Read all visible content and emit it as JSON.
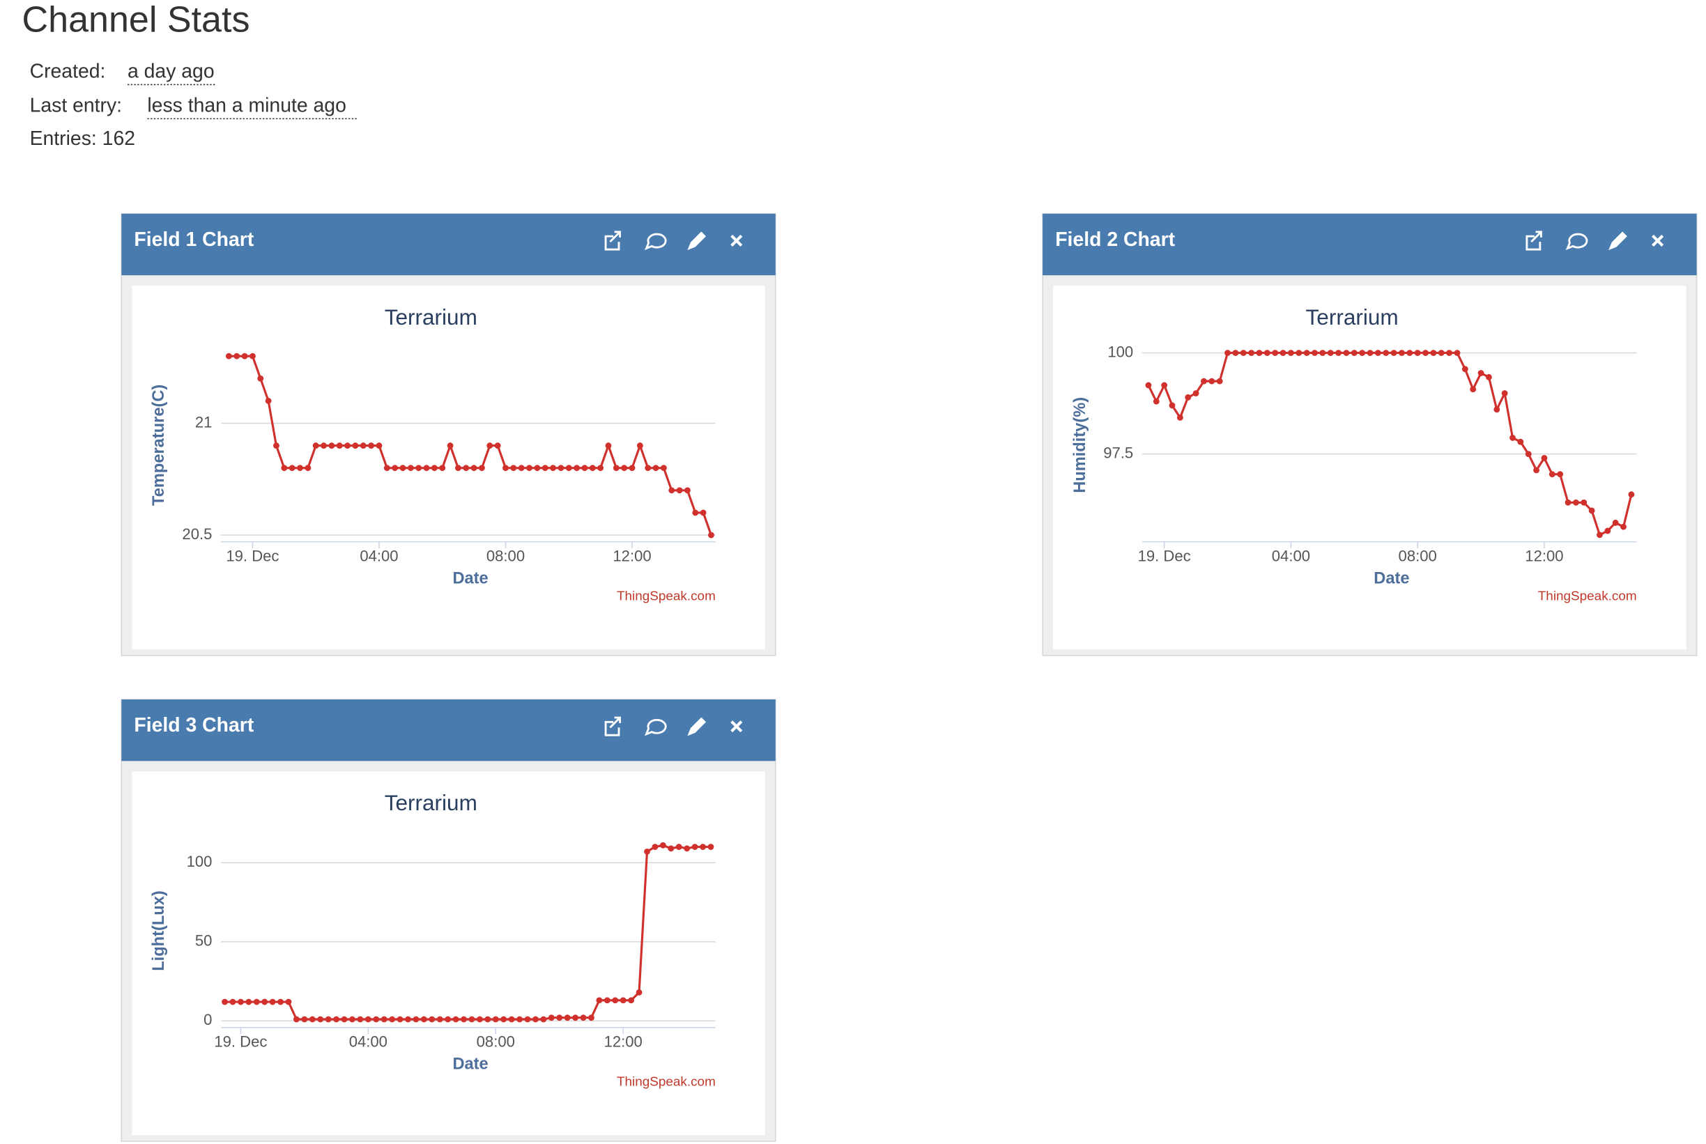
{
  "page": {
    "title": "Channel Stats",
    "created_label": "Created:",
    "created_value": "a day ago",
    "last_entry_label": "Last entry:",
    "last_entry_value": "less than a minute ago",
    "entries": "Entries: 162"
  },
  "chart_data": [
    {
      "type": "line",
      "panel_title": "Field 1 Chart",
      "title": "Terrarium",
      "ylabel": "Temperature(C)",
      "xlabel": "Date",
      "credit": "ThingSpeak.com",
      "color": "#d0312d",
      "grid": true,
      "xlim": [
        -1.0,
        14.64
      ],
      "xticks": [
        {
          "value": 0,
          "label": "19. Dec"
        },
        {
          "value": 4,
          "label": "04:00"
        },
        {
          "value": 8,
          "label": "08:00"
        },
        {
          "value": 12,
          "label": "12:00"
        }
      ],
      "ylim": [
        20.47,
        21.32
      ],
      "yticks": [
        20.5,
        21
      ],
      "x": [
        -0.75,
        -0.5,
        -0.25,
        0,
        0.25,
        0.5,
        0.75,
        1,
        1.25,
        1.5,
        1.75,
        2,
        2.25,
        2.5,
        2.75,
        3,
        3.25,
        3.5,
        3.75,
        4,
        4.25,
        4.5,
        4.75,
        5,
        5.25,
        5.5,
        5.75,
        6,
        6.25,
        6.5,
        6.75,
        7,
        7.25,
        7.5,
        7.75,
        8,
        8.25,
        8.5,
        8.75,
        9,
        9.25,
        9.5,
        9.75,
        10,
        10.25,
        10.5,
        10.75,
        11,
        11.25,
        11.5,
        11.75,
        12,
        12.25,
        12.5,
        12.75,
        13,
        13.25,
        13.5,
        13.75,
        14,
        14.25,
        14.5
      ],
      "values": [
        21.3,
        21.3,
        21.3,
        21.3,
        21.2,
        21.1,
        20.9,
        20.8,
        20.8,
        20.8,
        20.8,
        20.9,
        20.9,
        20.9,
        20.9,
        20.9,
        20.9,
        20.9,
        20.9,
        20.9,
        20.8,
        20.8,
        20.8,
        20.8,
        20.8,
        20.8,
        20.8,
        20.8,
        20.9,
        20.8,
        20.8,
        20.8,
        20.8,
        20.9,
        20.9,
        20.8,
        20.8,
        20.8,
        20.8,
        20.8,
        20.8,
        20.8,
        20.8,
        20.8,
        20.8,
        20.8,
        20.8,
        20.8,
        20.9,
        20.8,
        20.8,
        20.8,
        20.9,
        20.8,
        20.8,
        20.8,
        20.7,
        20.7,
        20.7,
        20.6,
        20.6,
        20.5
      ]
    },
    {
      "type": "line",
      "panel_title": "Field 2 Chart",
      "title": "Terrarium",
      "ylabel": "Humidity(%)",
      "xlabel": "Date",
      "credit": "ThingSpeak.com",
      "color": "#d0312d",
      "grid": true,
      "xlim": [
        -0.7,
        14.92
      ],
      "xticks": [
        {
          "value": 0,
          "label": "19. Dec"
        },
        {
          "value": 4,
          "label": "04:00"
        },
        {
          "value": 8,
          "label": "08:00"
        },
        {
          "value": 12,
          "label": "12:00"
        }
      ],
      "ylim": [
        95.33,
        100.03
      ],
      "yticks": [
        97.5,
        100
      ],
      "x": [
        -0.5,
        -0.25,
        0,
        0.25,
        0.5,
        0.75,
        1,
        1.25,
        1.5,
        1.75,
        2,
        2.25,
        2.5,
        2.75,
        3,
        3.25,
        3.5,
        3.75,
        4,
        4.25,
        4.5,
        4.75,
        5,
        5.25,
        5.5,
        5.75,
        6,
        6.25,
        6.5,
        6.75,
        7,
        7.25,
        7.5,
        7.75,
        8,
        8.25,
        8.5,
        8.75,
        9,
        9.25,
        9.5,
        9.75,
        10,
        10.25,
        10.5,
        10.75,
        11,
        11.25,
        11.5,
        11.75,
        12,
        12.25,
        12.5,
        12.75,
        13,
        13.25,
        13.5,
        13.75,
        14,
        14.25,
        14.5,
        14.75
      ],
      "values": [
        99.2,
        98.8,
        99.2,
        98.7,
        98.4,
        98.9,
        99.0,
        99.3,
        99.3,
        99.3,
        100,
        100,
        100,
        100,
        100,
        100,
        100,
        100,
        100,
        100,
        100,
        100,
        100,
        100,
        100,
        100,
        100,
        100,
        100,
        100,
        100,
        100,
        100,
        100,
        100,
        100,
        100,
        100,
        100,
        100,
        99.6,
        99.1,
        99.5,
        99.4,
        98.6,
        99.0,
        97.9,
        97.8,
        97.5,
        97.1,
        97.4,
        97.0,
        97.0,
        96.3,
        96.3,
        96.3,
        96.1,
        95.5,
        95.6,
        95.8,
        95.7,
        96.5
      ]
    },
    {
      "type": "line",
      "panel_title": "Field 3 Chart",
      "title": "Terrarium",
      "ylabel": "Light(Lux)",
      "xlabel": "Date",
      "credit": "ThingSpeak.com",
      "color": "#d0312d",
      "grid": true,
      "xlim": [
        -0.62,
        14.9
      ],
      "xticks": [
        {
          "value": 0,
          "label": "19. Dec"
        },
        {
          "value": 4,
          "label": "04:00"
        },
        {
          "value": 8,
          "label": "08:00"
        },
        {
          "value": 12,
          "label": "12:00"
        }
      ],
      "ylim": [
        -4.2,
        116
      ],
      "yticks": [
        0,
        50,
        100
      ],
      "x": [
        -0.5,
        -0.25,
        0,
        0.25,
        0.5,
        0.75,
        1,
        1.25,
        1.5,
        1.75,
        2,
        2.25,
        2.5,
        2.75,
        3,
        3.25,
        3.5,
        3.75,
        4,
        4.25,
        4.5,
        4.75,
        5,
        5.25,
        5.5,
        5.75,
        6,
        6.25,
        6.5,
        6.75,
        7,
        7.25,
        7.5,
        7.75,
        8,
        8.25,
        8.5,
        8.75,
        9,
        9.25,
        9.5,
        9.75,
        10,
        10.25,
        10.5,
        10.75,
        11,
        11.25,
        11.5,
        11.75,
        12,
        12.25,
        12.5,
        12.75,
        13,
        13.25,
        13.5,
        13.75,
        14,
        14.25,
        14.5,
        14.75
      ],
      "values": [
        12,
        12,
        12,
        12,
        12,
        12,
        12,
        12,
        12,
        1,
        1,
        1,
        1,
        1,
        1,
        1,
        1,
        1,
        1,
        1,
        1,
        1,
        1,
        1,
        1,
        1,
        1,
        1,
        1,
        1,
        1,
        1,
        1,
        1,
        1,
        1,
        1,
        1,
        1,
        1,
        1,
        2,
        2,
        2,
        2,
        2,
        2,
        13,
        13,
        13,
        13,
        13,
        18,
        107,
        110,
        111,
        109,
        110,
        109,
        110,
        110,
        110
      ]
    }
  ]
}
